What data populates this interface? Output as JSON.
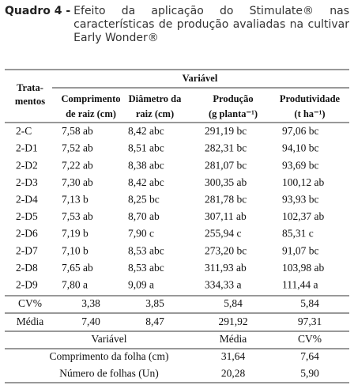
{
  "caption": {
    "label": "Quadro 4 -",
    "text": "Efeito da aplicação do Stimulate® nas características de produção avaliadas na cultivar Early Wonder®"
  },
  "table": {
    "treatment_header": [
      "Trata-",
      "mentos"
    ],
    "group_header": "Variável",
    "columns": [
      [
        "Comprimento",
        "de raiz (cm)"
      ],
      [
        "Diâmetro da",
        "raiz (cm)"
      ],
      [
        "Produção",
        "(g planta⁻¹)"
      ],
      [
        "Produtividade",
        "(t ha⁻¹)"
      ]
    ],
    "rows": [
      [
        "2-C",
        "7,58 ab",
        "8,42 abc",
        "291,19 bc",
        "97,06 bc"
      ],
      [
        "2-D1",
        "7,52 ab",
        "8,51 abc",
        "282,31 bc",
        "94,10 bc"
      ],
      [
        "2-D2",
        "7,22 ab",
        "8,38 abc",
        "281,07 bc",
        "93,69 bc"
      ],
      [
        "2-D3",
        "7,30 ab",
        "8,42 abc",
        "300,35 ab",
        "100,12 ab"
      ],
      [
        "2-D4",
        "7,13 b",
        "8,25 bc",
        "281,78 bc",
        "93,93 bc"
      ],
      [
        "2-D5",
        "7,53 ab",
        "8,70 ab",
        "307,11 ab",
        "102,37 ab"
      ],
      [
        "2-D6",
        "7,19 b",
        "7,90 c",
        "255,94 c",
        "85,31 c"
      ],
      [
        "2-D7",
        "7,10 b",
        "8,53 abc",
        "273,20 bc",
        "91,07 bc"
      ],
      [
        "2-D8",
        "7,65 ab",
        "8,53 abc",
        "311,93 ab",
        "103,98 ab"
      ],
      [
        "2-D9",
        "7,80 a",
        "9,09 a",
        "334,33 a",
        "111,44 a"
      ]
    ],
    "summary": [
      [
        "CV%",
        "3,38",
        "3,85",
        "5,84",
        "5,84"
      ],
      [
        "Média",
        "7,40",
        "8,47",
        "291,92",
        "97,31"
      ]
    ]
  },
  "leaf_table": {
    "header": [
      "Variável",
      "Média",
      "CV%"
    ],
    "rows": [
      [
        "Comprimento da folha (cm)",
        "31,64",
        "7,64"
      ],
      [
        "Número de folhas (Un)",
        "20,28",
        "5,90"
      ]
    ]
  }
}
